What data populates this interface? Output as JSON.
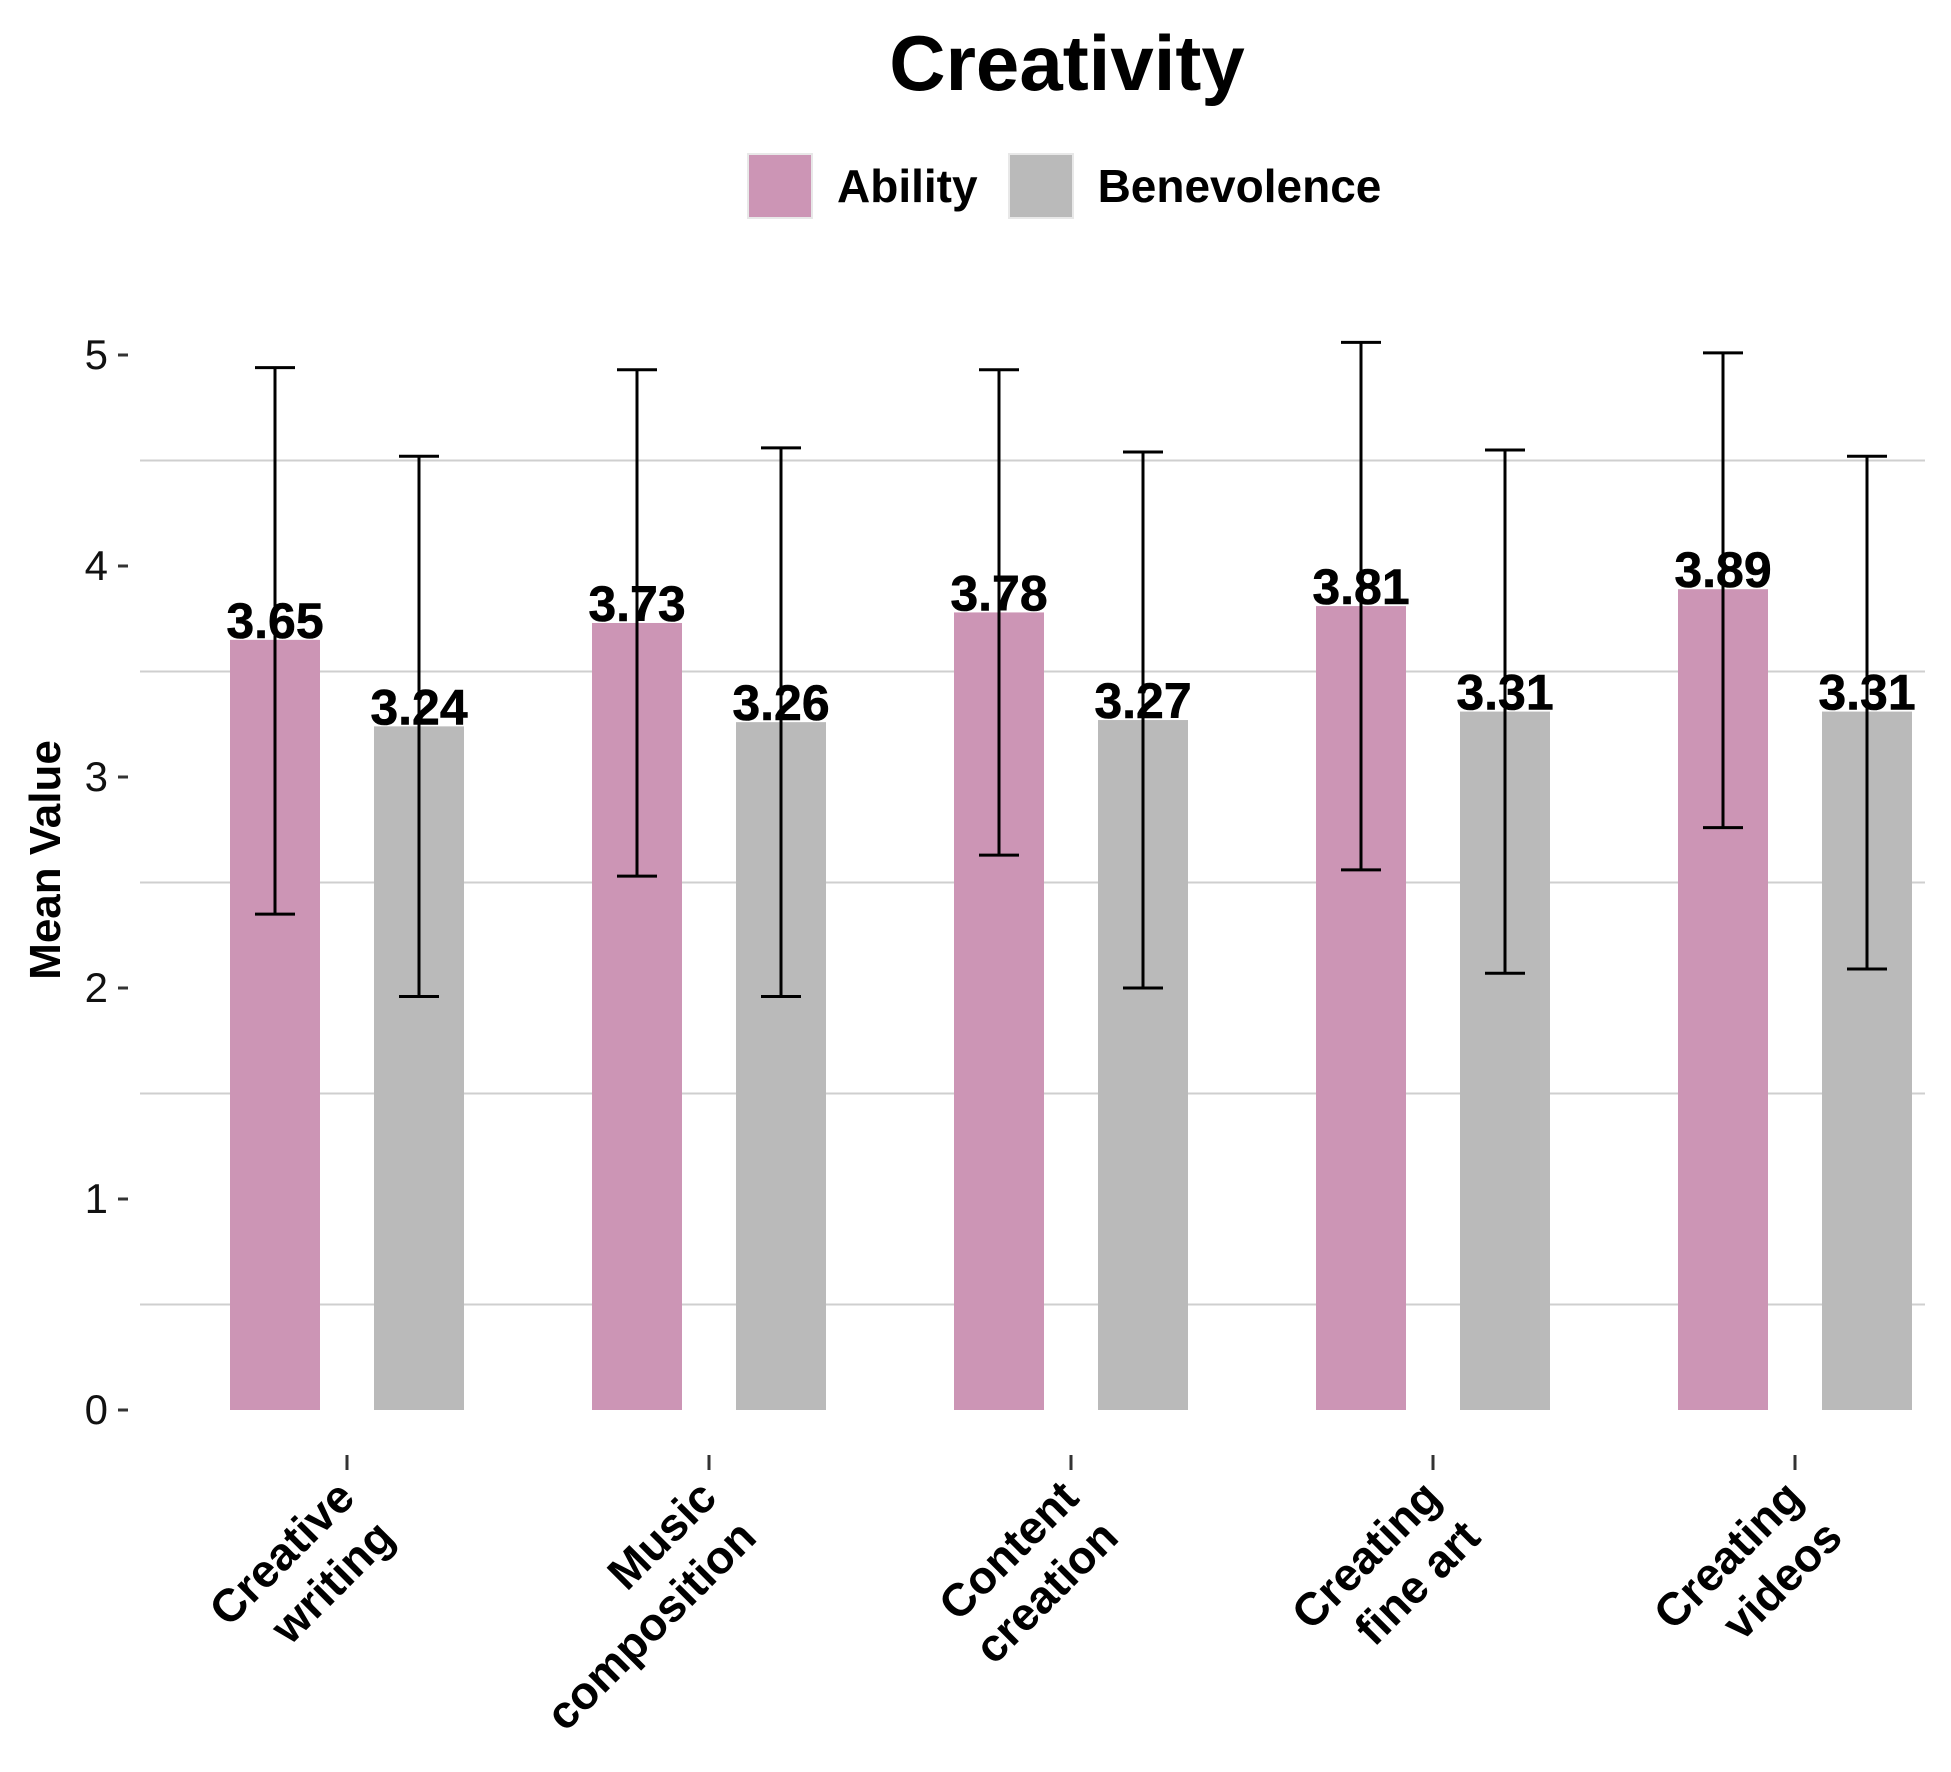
{
  "chart_data": {
    "type": "bar",
    "title": "Creativity",
    "xlabel": "",
    "ylabel": "Mean Value",
    "ylim": [
      0,
      5
    ],
    "yticks": [
      0,
      1,
      2,
      3,
      4,
      5
    ],
    "legend_position": "top",
    "categories": [
      [
        "Creative",
        "writing"
      ],
      [
        "Music",
        "composition"
      ],
      [
        "Content",
        "creation"
      ],
      [
        "Creating",
        "fine art"
      ],
      [
        "Creating",
        "videos"
      ]
    ],
    "series": [
      {
        "name": "Ability",
        "color": "#cc95b5",
        "values": [
          3.65,
          3.73,
          3.78,
          3.81,
          3.89
        ],
        "labels": [
          "3.65",
          "3.73",
          "3.78",
          "3.81",
          "3.89"
        ],
        "error_low": [
          2.35,
          2.53,
          2.63,
          2.56,
          2.76
        ],
        "error_high": [
          4.94,
          4.93,
          4.93,
          5.06,
          5.01
        ]
      },
      {
        "name": "Benevolence",
        "color": "#bababa",
        "values": [
          3.24,
          3.26,
          3.27,
          3.31,
          3.31
        ],
        "labels": [
          "3.24",
          "3.26",
          "3.27",
          "3.31",
          "3.31"
        ],
        "error_low": [
          1.96,
          1.96,
          2.0,
          2.07,
          2.09
        ],
        "error_high": [
          4.52,
          4.56,
          4.54,
          4.55,
          4.52
        ]
      }
    ]
  }
}
